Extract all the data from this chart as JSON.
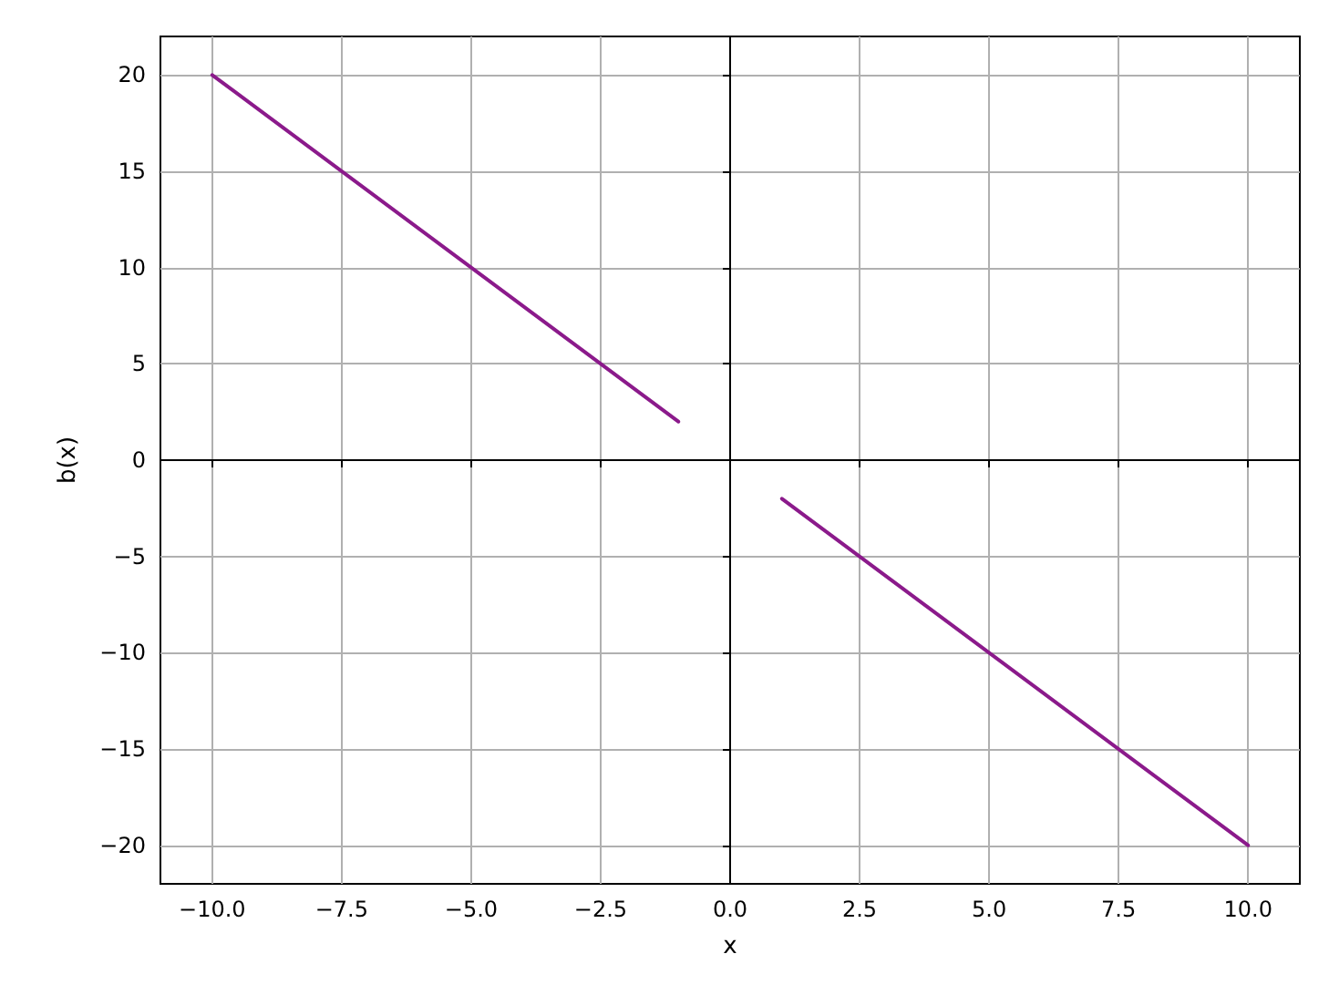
{
  "chart_data": {
    "type": "line",
    "xlabel": "x",
    "ylabel": "b(x)",
    "series": [
      {
        "color": "#8b1a8b",
        "x": [
          -10,
          -1
        ],
        "values": [
          20,
          2
        ]
      },
      {
        "color": "#8b1a8b",
        "x": [
          1,
          10
        ],
        "values": [
          -2,
          -20
        ]
      }
    ],
    "xlim": [
      -11,
      11
    ],
    "ylim": [
      -22,
      22
    ],
    "xticks": [
      {
        "value": -10,
        "label": "−10.0"
      },
      {
        "value": -7.5,
        "label": "−7.5"
      },
      {
        "value": -5,
        "label": "−5.0"
      },
      {
        "value": -2.5,
        "label": "−2.5"
      },
      {
        "value": 0,
        "label": "0.0"
      },
      {
        "value": 2.5,
        "label": "2.5"
      },
      {
        "value": 5,
        "label": "5.0"
      },
      {
        "value": 7.5,
        "label": "7.5"
      },
      {
        "value": 10,
        "label": "10.0"
      }
    ],
    "yticks": [
      {
        "value": -20,
        "label": "−20"
      },
      {
        "value": -15,
        "label": "−15"
      },
      {
        "value": -10,
        "label": "−10"
      },
      {
        "value": -5,
        "label": "−5"
      },
      0,
      5,
      10,
      15,
      20
    ],
    "grid": true,
    "line_style": "solid",
    "marker": "none"
  }
}
